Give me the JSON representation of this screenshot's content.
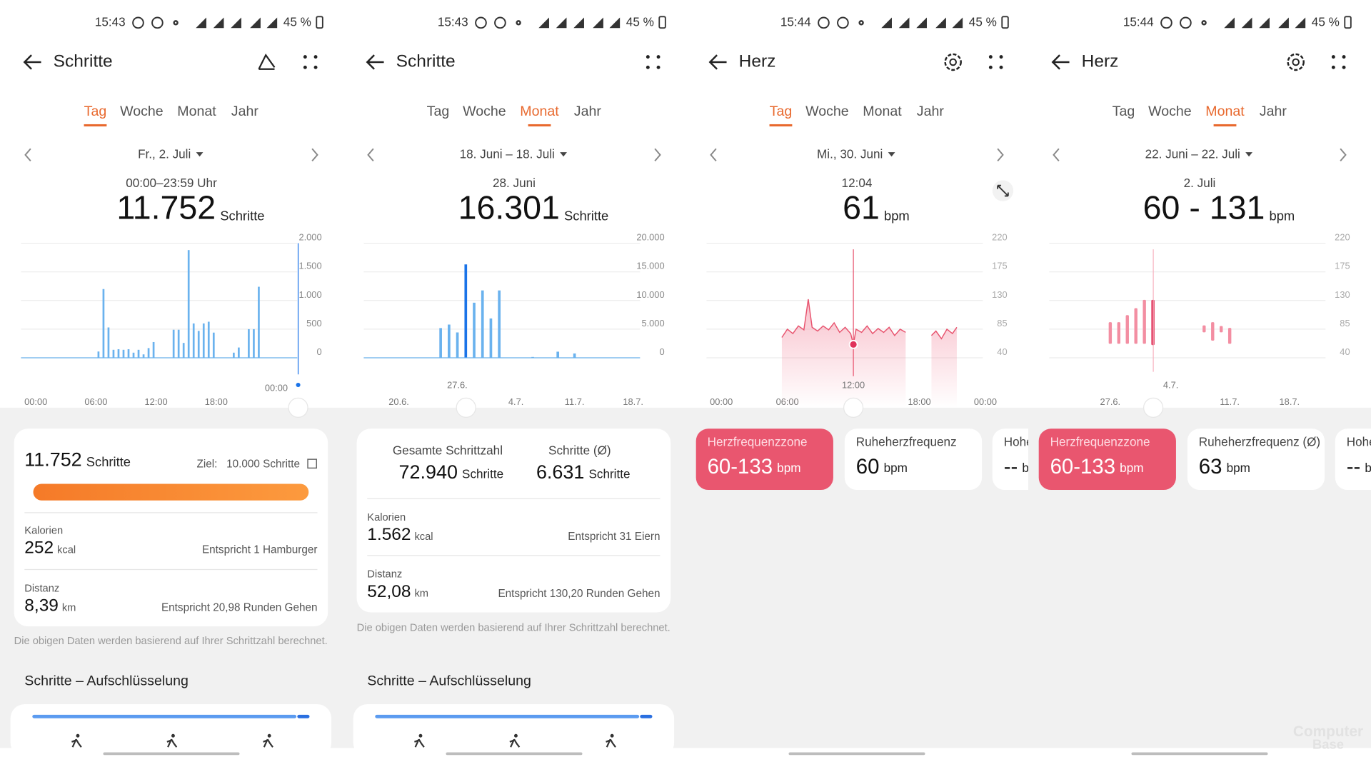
{
  "panels": [
    {
      "status": {
        "time": "15:43",
        "battery": "45 %"
      },
      "title": "Schritte",
      "tabs": [
        "Tag",
        "Woche",
        "Monat",
        "Jahr"
      ],
      "active_tab": 0,
      "date": "Fr., 2. Juli",
      "period": "00:00–23:59 Uhr",
      "big_value": "11.752",
      "big_unit": "Schritte",
      "chart": {
        "type": "bar",
        "color": "#6ab2ee",
        "ylim": [
          0,
          2000
        ],
        "yticks": [
          0,
          500,
          {
            "value": 1000,
            "label": "1.000"
          },
          {
            "value": 1500,
            "label": "1.500"
          },
          {
            "value": 2000,
            "label": "2.000"
          }
        ],
        "categories": [
          "00:00",
          null,
          null,
          null,
          null,
          null,
          null,
          null,
          null,
          null,
          null,
          null,
          "06:00",
          null,
          null,
          null,
          null,
          null,
          null,
          null,
          null,
          null,
          null,
          null,
          "12:00",
          null,
          null,
          null,
          null,
          null,
          null,
          null,
          null,
          null,
          null,
          null,
          "18:00",
          null,
          null,
          null,
          null,
          null,
          null,
          null,
          null,
          null,
          null,
          null
        ],
        "values": [
          0,
          0,
          0,
          0,
          0,
          0,
          0,
          0,
          0,
          0,
          0,
          0,
          110,
          1200,
          530,
          140,
          150,
          140,
          150,
          90,
          140,
          60,
          170,
          275,
          0,
          0,
          0,
          490,
          490,
          260,
          1880,
          600,
          470,
          600,
          630,
          440,
          0,
          0,
          0,
          90,
          180,
          0,
          500,
          500,
          1240,
          0,
          0,
          0
        ],
        "selected_label": "00:00"
      },
      "summary": {
        "value": "11.752",
        "unit": "Schritte",
        "goal_label": "Ziel:",
        "goal": "10.000 Schritte",
        "rows": [
          {
            "label": "Kalorien",
            "value": "252",
            "unit": "kcal",
            "note": "Entspricht 1 Hamburger"
          },
          {
            "label": "Distanz",
            "value": "8,39",
            "unit": "km",
            "note": "Entspricht 20,98 Runden Gehen"
          }
        ]
      },
      "footnote": "Die obigen Daten werden basierend auf Ihrer Schrittzahl berechnet.",
      "section": "Schritte – Aufschlüsselung"
    },
    {
      "status": {
        "time": "15:43",
        "battery": "45 %"
      },
      "title": "Schritte",
      "tabs": [
        "Tag",
        "Woche",
        "Monat",
        "Jahr"
      ],
      "active_tab": 2,
      "date": "18. Juni – 18. Juli",
      "period": "28. Juni",
      "big_value": "16.301",
      "big_unit": "Schritte",
      "chart": {
        "type": "bar",
        "color": "#6ab2ee",
        "highlight": 10,
        "highlight_color": "#1a73e8",
        "ylim": [
          0,
          20000
        ],
        "yticks": [
          0,
          {
            "value": 5000,
            "label": "5.000"
          },
          {
            "value": 10000,
            "label": "10.000"
          },
          {
            "value": 15000,
            "label": "15.000"
          },
          {
            "value": 20000,
            "label": "20.000"
          }
        ],
        "categories": [
          null,
          null,
          "20.6.",
          null,
          null,
          null,
          null,
          null,
          null,
          null,
          null,
          null,
          null,
          null,
          null,
          null,
          "4.7.",
          null,
          null,
          null,
          null,
          null,
          null,
          "11.7.",
          null,
          null,
          null,
          null,
          null,
          null,
          "18.7."
        ],
        "values": [
          0,
          0,
          0,
          0,
          0,
          0,
          0,
          5190,
          5800,
          4430,
          16301,
          9620,
          11760,
          6870,
          11760,
          0,
          0,
          0,
          150,
          0,
          0,
          1070,
          0,
          760,
          0,
          0,
          0,
          0,
          0,
          0,
          0
        ],
        "selected_label": "27.6."
      },
      "summary": {
        "stats": [
          {
            "label": "Gesamte Schrittzahl",
            "value": "72.940",
            "unit": "Schritte"
          },
          {
            "label": "Schritte (Ø)",
            "value": "6.631",
            "unit": "Schritte"
          }
        ],
        "rows": [
          {
            "label": "Kalorien",
            "value": "1.562",
            "unit": "kcal",
            "note": "Entspricht 31 Eiern"
          },
          {
            "label": "Distanz",
            "value": "52,08",
            "unit": "km",
            "note": "Entspricht 130,20 Runden Gehen"
          }
        ]
      },
      "footnote": "Die obigen Daten werden basierend auf Ihrer Schrittzahl berechnet.",
      "section": "Schritte – Aufschlüsselung"
    },
    {
      "status": {
        "time": "15:44",
        "battery": "45 %"
      },
      "title": "Herz",
      "tabs": [
        "Tag",
        "Woche",
        "Monat",
        "Jahr"
      ],
      "active_tab": 0,
      "date": "Mi., 30. Juni",
      "period": "12:04",
      "big_value": "61",
      "big_unit": "bpm",
      "chart": {
        "type": "line",
        "color": "#e8546f",
        "highlight": 14,
        "xlim": [
          0,
          24
        ],
        "xticks": [
          {
            "value": 0,
            "label": "00:00"
          },
          {
            "value": 6,
            "label": "06:00"
          },
          {
            "value": 18,
            "label": "18:00"
          },
          {
            "value": 24,
            "label": "00:00"
          }
        ],
        "ylim": [
          40,
          220
        ],
        "yticks": [
          40,
          85,
          130,
          175,
          220
        ],
        "x": [
          5.5,
          6,
          6.5,
          7,
          7.5,
          7.9,
          8.25,
          8.75,
          9.25,
          9.75,
          10.25,
          10.75,
          11.25,
          11.75,
          12,
          12.25,
          12.75,
          13.25,
          13.75,
          14.25,
          14.75,
          15.25,
          15.75,
          16.25,
          16.75,
          18,
          19.1,
          19.5,
          20,
          20.5,
          21,
          21.4
        ],
        "values": [
          72,
          85,
          78,
          90,
          84,
          132,
          88,
          82,
          90,
          84,
          95,
          80,
          88,
          78,
          61,
          85,
          80,
          90,
          78,
          86,
          80,
          88,
          75,
          85,
          80,
          null,
          75,
          82,
          70,
          85,
          78,
          88
        ],
        "selected_label": "12:00"
      },
      "cards": [
        {
          "label": "Herzfrequenzzone",
          "value": "60-133",
          "unit": "bpm"
        },
        {
          "label": "Ruheherzfrequenz",
          "value": "60",
          "unit": "bpm"
        },
        {
          "label": "Hohe",
          "value": "--",
          "unit": "b"
        }
      ]
    },
    {
      "status": {
        "time": "15:44",
        "battery": "45 %"
      },
      "title": "Herz",
      "tabs": [
        "Tag",
        "Woche",
        "Monat",
        "Jahr"
      ],
      "active_tab": 2,
      "date": "22. Juni – 22. Juli",
      "period": "2. Juli",
      "big_value": "60 - 131",
      "big_unit": "bpm",
      "chart": {
        "type": "range",
        "color": "#f38ea2",
        "highlight": 10,
        "highlight_color": "#e0325a",
        "ylim": [
          40,
          220
        ],
        "yticks": [
          40,
          85,
          130,
          175,
          220
        ],
        "categories": [
          null,
          null,
          null,
          null,
          null,
          "27.6.",
          null,
          null,
          null,
          null,
          null,
          null,
          null,
          null,
          null,
          null,
          null,
          null,
          null,
          "11.7.",
          null,
          null,
          null,
          null,
          null,
          null,
          "18.7.",
          null,
          null,
          null,
          null
        ],
        "min": [
          null,
          null,
          null,
          null,
          null,
          62,
          62,
          62,
          62,
          62,
          60,
          null,
          null,
          null,
          null,
          null,
          80,
          67,
          80,
          62,
          null,
          null,
          null,
          null,
          null,
          null,
          null,
          null,
          null,
          null,
          null
        ],
        "max": [
          null,
          null,
          null,
          null,
          null,
          96,
          96,
          107,
          118,
          131,
          131,
          null,
          null,
          null,
          null,
          null,
          91,
          96,
          90,
          87,
          null,
          null,
          null,
          null,
          null,
          null,
          null,
          null,
          null,
          null,
          null
        ],
        "selected_label": "4.7."
      },
      "cards": [
        {
          "label": "Herzfrequenzzone",
          "value": "60-133",
          "unit": "bpm"
        },
        {
          "label": "Ruheherzfrequenz (Ø)",
          "value": "63",
          "unit": "bpm"
        },
        {
          "label": "Hohe",
          "value": "--",
          "unit": "b"
        }
      ]
    }
  ],
  "watermark": [
    "Computer",
    "Base"
  ]
}
